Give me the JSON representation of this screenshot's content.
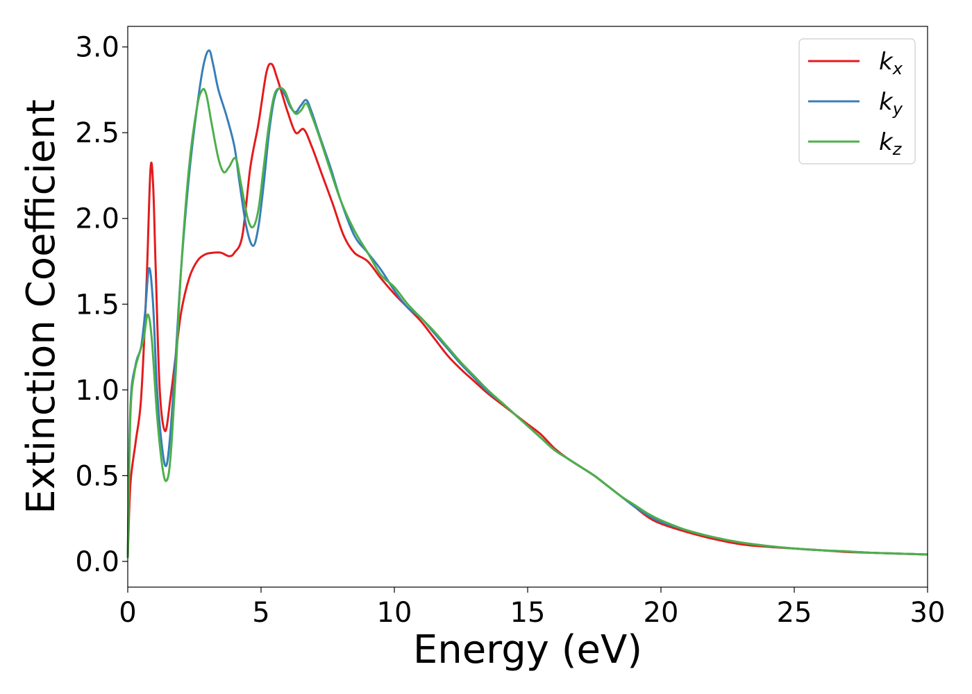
{
  "chart_data": {
    "type": "line",
    "title": "",
    "xlabel": "Energy (eV)",
    "ylabel": "Extinction Coefficient",
    "xlim": [
      0,
      30
    ],
    "ylim": [
      -0.15,
      3.12
    ],
    "xticks": [
      0,
      5,
      10,
      15,
      20,
      25,
      30
    ],
    "xtick_labels": [
      "0",
      "5",
      "10",
      "15",
      "20",
      "25",
      "30"
    ],
    "yticks": [
      0.0,
      0.5,
      1.0,
      1.5,
      2.0,
      2.5,
      3.0
    ],
    "ytick_labels": [
      "0.0",
      "0.5",
      "1.0",
      "1.5",
      "2.0",
      "2.5",
      "3.0"
    ],
    "grid": false,
    "legend_position": "top-right",
    "series": [
      {
        "name": "k",
        "subscript": "x",
        "color": "#e41a1c",
        "x": [
          0,
          0.1,
          0.3,
          0.5,
          0.7,
          0.85,
          0.95,
          1.05,
          1.2,
          1.4,
          1.6,
          1.8,
          2.0,
          2.3,
          2.6,
          2.9,
          3.2,
          3.5,
          3.8,
          4.0,
          4.3,
          4.6,
          4.9,
          5.2,
          5.4,
          5.6,
          5.8,
          6.0,
          6.3,
          6.6,
          6.9,
          7.3,
          7.7,
          8.1,
          8.5,
          9.0,
          9.5,
          10.0,
          10.5,
          11.0,
          11.5,
          12.0,
          12.5,
          13.0,
          13.5,
          14.0,
          14.5,
          15.0,
          15.5,
          16.0,
          16.5,
          17.0,
          17.5,
          18.0,
          18.5,
          19.0,
          19.5,
          20.0,
          21.0,
          22.0,
          23.0,
          24.0,
          25.0,
          26.0,
          27.0,
          28.0,
          29.0,
          30.0
        ],
        "y": [
          0.02,
          0.45,
          0.7,
          0.95,
          1.6,
          2.28,
          2.2,
          1.7,
          1.0,
          0.76,
          0.95,
          1.2,
          1.45,
          1.65,
          1.75,
          1.79,
          1.8,
          1.8,
          1.78,
          1.8,
          1.9,
          2.3,
          2.55,
          2.85,
          2.9,
          2.82,
          2.72,
          2.62,
          2.5,
          2.52,
          2.42,
          2.25,
          2.08,
          1.9,
          1.8,
          1.75,
          1.65,
          1.56,
          1.48,
          1.4,
          1.3,
          1.2,
          1.12,
          1.05,
          0.98,
          0.92,
          0.86,
          0.8,
          0.74,
          0.66,
          0.6,
          0.55,
          0.5,
          0.44,
          0.38,
          0.32,
          0.26,
          0.22,
          0.17,
          0.13,
          0.1,
          0.085,
          0.075,
          0.065,
          0.055,
          0.05,
          0.045,
          0.04
        ]
      },
      {
        "name": "k",
        "subscript": "y",
        "color": "#377eb8",
        "x": [
          0,
          0.1,
          0.3,
          0.5,
          0.65,
          0.8,
          0.95,
          1.1,
          1.3,
          1.45,
          1.6,
          1.8,
          2.0,
          2.3,
          2.6,
          2.85,
          3.05,
          3.2,
          3.4,
          3.7,
          4.0,
          4.2,
          4.45,
          4.7,
          4.9,
          5.1,
          5.3,
          5.5,
          5.7,
          5.9,
          6.1,
          6.3,
          6.5,
          6.7,
          6.9,
          7.2,
          7.6,
          8.0,
          8.5,
          9.0,
          9.5,
          10.0,
          10.5,
          11.0,
          11.5,
          12.0,
          12.5,
          13.0,
          13.5,
          14.0,
          14.5,
          15.0,
          15.5,
          16.0,
          16.5,
          17.0,
          17.5,
          18.0,
          18.5,
          19.0,
          19.5,
          20.0,
          21.0,
          22.0,
          23.0,
          24.0,
          25.0,
          26.0,
          27.0,
          28.0,
          29.0,
          30.0
        ],
        "y": [
          0.02,
          0.9,
          1.15,
          1.25,
          1.45,
          1.71,
          1.5,
          1.0,
          0.65,
          0.56,
          0.75,
          1.2,
          1.7,
          2.25,
          2.65,
          2.9,
          2.98,
          2.9,
          2.75,
          2.6,
          2.42,
          2.2,
          1.95,
          1.84,
          1.95,
          2.2,
          2.5,
          2.7,
          2.76,
          2.72,
          2.65,
          2.62,
          2.66,
          2.69,
          2.62,
          2.48,
          2.3,
          2.1,
          1.9,
          1.8,
          1.7,
          1.58,
          1.48,
          1.42,
          1.33,
          1.24,
          1.15,
          1.07,
          0.99,
          0.93,
          0.86,
          0.79,
          0.72,
          0.65,
          0.6,
          0.55,
          0.5,
          0.44,
          0.38,
          0.32,
          0.27,
          0.23,
          0.18,
          0.14,
          0.11,
          0.09,
          0.075,
          0.065,
          0.058,
          0.05,
          0.045,
          0.04
        ]
      },
      {
        "name": "k",
        "subscript": "z",
        "color": "#4daf4a",
        "x": [
          0,
          0.1,
          0.25,
          0.45,
          0.6,
          0.75,
          0.9,
          1.1,
          1.3,
          1.45,
          1.6,
          1.8,
          2.0,
          2.3,
          2.6,
          2.8,
          2.95,
          3.15,
          3.4,
          3.6,
          3.8,
          4.05,
          4.25,
          4.5,
          4.7,
          4.9,
          5.1,
          5.3,
          5.5,
          5.7,
          5.9,
          6.1,
          6.3,
          6.5,
          6.7,
          6.9,
          7.2,
          7.6,
          8.0,
          8.5,
          9.0,
          9.5,
          10.0,
          10.5,
          11.0,
          11.5,
          12.0,
          12.5,
          13.0,
          13.5,
          14.0,
          14.5,
          15.0,
          15.5,
          16.0,
          16.5,
          17.0,
          17.5,
          18.0,
          18.5,
          19.0,
          19.5,
          20.0,
          21.0,
          22.0,
          23.0,
          24.0,
          25.0,
          26.0,
          27.0,
          28.0,
          29.0,
          30.0
        ],
        "y": [
          0.02,
          0.85,
          1.1,
          1.22,
          1.3,
          1.44,
          1.3,
          0.85,
          0.55,
          0.47,
          0.6,
          1.1,
          1.7,
          2.3,
          2.65,
          2.75,
          2.72,
          2.55,
          2.35,
          2.27,
          2.3,
          2.35,
          2.2,
          2.0,
          1.95,
          2.05,
          2.3,
          2.55,
          2.72,
          2.76,
          2.74,
          2.66,
          2.61,
          2.63,
          2.67,
          2.6,
          2.47,
          2.28,
          2.1,
          1.93,
          1.8,
          1.67,
          1.6,
          1.5,
          1.42,
          1.34,
          1.25,
          1.16,
          1.08,
          1.0,
          0.93,
          0.86,
          0.79,
          0.72,
          0.65,
          0.6,
          0.55,
          0.5,
          0.44,
          0.38,
          0.33,
          0.28,
          0.24,
          0.18,
          0.14,
          0.11,
          0.09,
          0.075,
          0.065,
          0.058,
          0.05,
          0.045,
          0.04
        ]
      }
    ]
  }
}
